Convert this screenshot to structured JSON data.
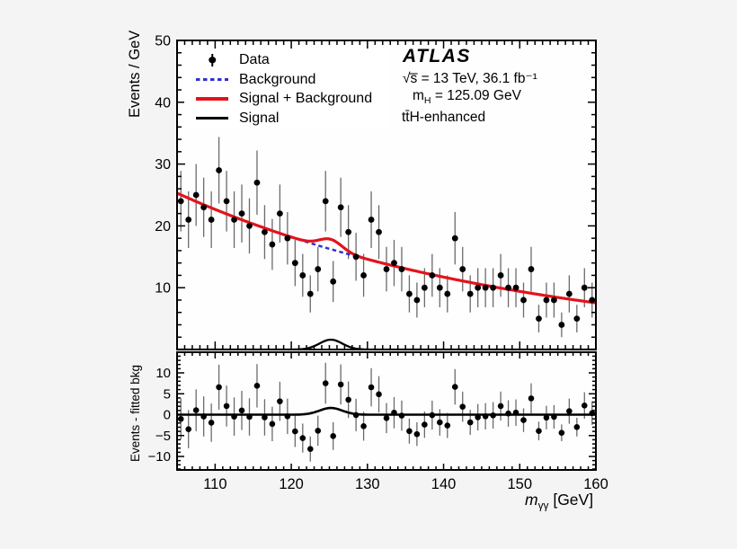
{
  "page": {
    "background": "#f5f4f5",
    "panel": "#fefefe",
    "frame_color": "#000000"
  },
  "annotations": {
    "experiment": "ATLAS",
    "energy_lumi": "√s̅ = 13 TeV, 36.1 fb⁻¹",
    "mass_prefix": "m",
    "mass_sub": "H",
    "mass_value": " = 125.09 GeV",
    "category": "tt̄H-enhanced"
  },
  "legend": {
    "items": [
      {
        "label": "Data",
        "marker": "black-point-with-error-bar",
        "color": "#000000"
      },
      {
        "label": "Background",
        "marker": "blue-dashed-line",
        "color": "#3030cf"
      },
      {
        "label": "Signal + Background",
        "marker": "red-solid-line",
        "color": "#e3131b"
      },
      {
        "label": "Signal",
        "marker": "black-solid-line",
        "color": "#000000"
      }
    ]
  },
  "axes": {
    "x_title_m": "m",
    "x_title_sub": "γγ",
    "x_title_unit": " [GeV]",
    "main_y_title": "Events / GeV",
    "residual_y_title": "Events - fitted bkg"
  },
  "chart_data": [
    {
      "type": "scatter",
      "panel": "main",
      "title": "",
      "xlabel": "m_γγ [GeV]",
      "ylabel": "Events / GeV",
      "xlim": [
        105,
        160
      ],
      "ylim": [
        0,
        50
      ],
      "x_major_ticks": [
        110,
        120,
        130,
        140,
        150,
        160
      ],
      "x_minor_step": 1,
      "y_major_ticks": [
        10,
        20,
        30,
        40,
        50
      ],
      "y_minor_step": 2,
      "bin_width_gev": 1,
      "bin_centers": [
        105.5,
        106.5,
        107.5,
        108.5,
        109.5,
        110.5,
        111.5,
        112.5,
        113.5,
        114.5,
        115.5,
        116.5,
        117.5,
        118.5,
        119.5,
        120.5,
        121.5,
        122.5,
        123.5,
        124.5,
        125.5,
        126.5,
        127.5,
        128.5,
        129.5,
        130.5,
        131.5,
        132.5,
        133.5,
        134.5,
        135.5,
        136.5,
        137.5,
        138.5,
        139.5,
        140.5,
        141.5,
        142.5,
        143.5,
        144.5,
        145.5,
        146.5,
        147.5,
        148.5,
        149.5,
        150.5,
        151.5,
        152.5,
        153.5,
        154.5,
        155.5,
        156.5,
        157.5,
        158.5,
        159.5
      ],
      "values": [
        24,
        21,
        25,
        23,
        21,
        29,
        24,
        21,
        22,
        20,
        27,
        19,
        17,
        22,
        18,
        14,
        12,
        9,
        13,
        24,
        11,
        23,
        19,
        15,
        12,
        21,
        19,
        13,
        14,
        13,
        9,
        8,
        10,
        12,
        10,
        9,
        18,
        13,
        9,
        10,
        10,
        10,
        12,
        10,
        10,
        8,
        13,
        5,
        8,
        8,
        4,
        9,
        5,
        10,
        8
      ],
      "error_model": "sqrt(N)",
      "series": [
        {
          "name": "Data",
          "type": "points",
          "color": "#000000",
          "error_bar_color": "#6b6b6b"
        },
        {
          "name": "Background",
          "type": "curve",
          "model": "exponential",
          "y_at_105": 25.3,
          "y_at_160": 7.55,
          "color": "#3030cf",
          "line": "dashed"
        },
        {
          "name": "Signal + Background",
          "type": "curve",
          "model": "background_plus_signal",
          "color": "#e3131b",
          "line": "solid"
        },
        {
          "name": "Signal",
          "type": "curve",
          "model": "gaussian",
          "amplitude": 1.6,
          "mean": 125.2,
          "sigma": 1.5,
          "color": "#000000",
          "line": "solid"
        }
      ],
      "legend_position": "top-left",
      "grid": false
    },
    {
      "type": "scatter",
      "panel": "residual",
      "ylabel": "Events - fitted bkg",
      "xlim": [
        105,
        160
      ],
      "ylim": [
        -13.2,
        14.9
      ],
      "y_major_ticks": [
        -10,
        -5,
        0,
        5,
        10
      ],
      "y_minor_step": 1,
      "points_derivation": "main.values - background_curve",
      "curve": "signal_gaussian_over_zero_line",
      "grid": false
    }
  ]
}
